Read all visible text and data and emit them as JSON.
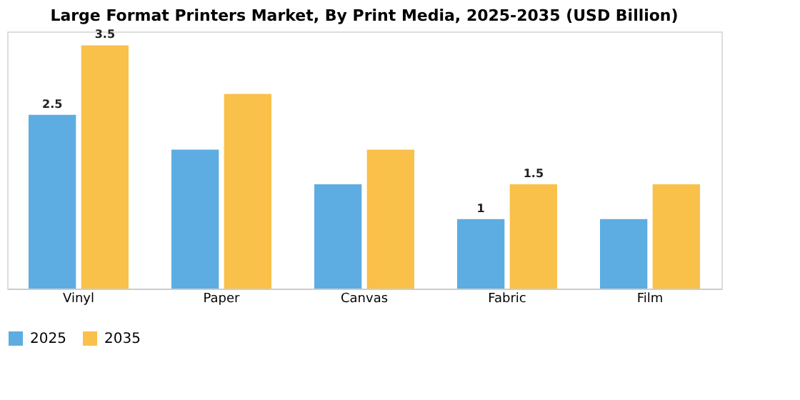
{
  "chart_data": {
    "type": "bar",
    "title": "Large Format Printers Market, By Print Media, 2025-2035 (USD Billion)",
    "categories": [
      "Vinyl",
      "Paper",
      "Canvas",
      "Fabric",
      "Film"
    ],
    "series": [
      {
        "name": "2025",
        "color": "#5dade2",
        "values": [
          2.5,
          2.0,
          1.5,
          1.0,
          1.0
        ],
        "value_labels": [
          "2.5",
          null,
          null,
          "1",
          null
        ]
      },
      {
        "name": "2035",
        "color": "#f9c04a",
        "values": [
          3.5,
          2.8,
          2.0,
          1.5,
          1.5
        ],
        "value_labels": [
          "3.5",
          null,
          null,
          "1.5",
          null
        ]
      }
    ],
    "ylim": [
      0,
      3.7
    ],
    "legend": "bottom",
    "grid": false
  }
}
